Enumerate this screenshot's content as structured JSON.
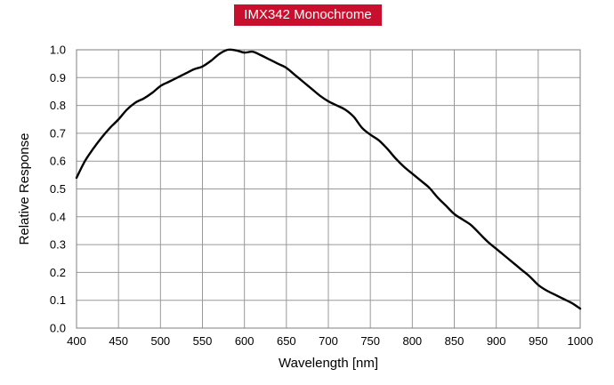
{
  "chart_data": {
    "type": "line",
    "title": "IMX342 Monochrome",
    "xlabel": "Wavelength [nm]",
    "ylabel": "Relative Response",
    "xlim": [
      400,
      1000
    ],
    "ylim": [
      0.0,
      1.0
    ],
    "x_ticks": [
      "400",
      "450",
      "500",
      "550",
      "600",
      "650",
      "700",
      "750",
      "800",
      "850",
      "900",
      "950",
      "1000"
    ],
    "y_ticks": [
      "0.0",
      "0.1",
      "0.2",
      "0.3",
      "0.4",
      "0.5",
      "0.6",
      "0.7",
      "0.8",
      "0.9",
      "1.0"
    ],
    "grid": true,
    "colors": {
      "title_background": "#c8102e",
      "title_text": "#ffffff",
      "line": "#000000",
      "grid": "#999999"
    },
    "series": [
      {
        "x": [
          400,
          410,
          420,
          430,
          440,
          450,
          460,
          470,
          480,
          490,
          500,
          510,
          520,
          530,
          540,
          550,
          560,
          570,
          580,
          590,
          600,
          610,
          620,
          630,
          640,
          650,
          660,
          670,
          680,
          690,
          700,
          710,
          720,
          730,
          740,
          750,
          760,
          770,
          780,
          790,
          800,
          810,
          820,
          830,
          840,
          850,
          860,
          870,
          880,
          890,
          900,
          910,
          920,
          930,
          940,
          950,
          960,
          970,
          980,
          990,
          1000
        ],
        "y": [
          0.54,
          0.6,
          0.645,
          0.685,
          0.72,
          0.75,
          0.785,
          0.81,
          0.825,
          0.845,
          0.87,
          0.885,
          0.9,
          0.915,
          0.93,
          0.94,
          0.96,
          0.985,
          1.0,
          0.998,
          0.99,
          0.993,
          0.98,
          0.965,
          0.95,
          0.935,
          0.91,
          0.885,
          0.86,
          0.835,
          0.815,
          0.8,
          0.785,
          0.76,
          0.72,
          0.695,
          0.675,
          0.645,
          0.61,
          0.58,
          0.555,
          0.53,
          0.505,
          0.47,
          0.44,
          0.41,
          0.39,
          0.37,
          0.34,
          0.31,
          0.285,
          0.26,
          0.235,
          0.21,
          0.185,
          0.155,
          0.135,
          0.12,
          0.105,
          0.09,
          0.07
        ]
      }
    ]
  }
}
